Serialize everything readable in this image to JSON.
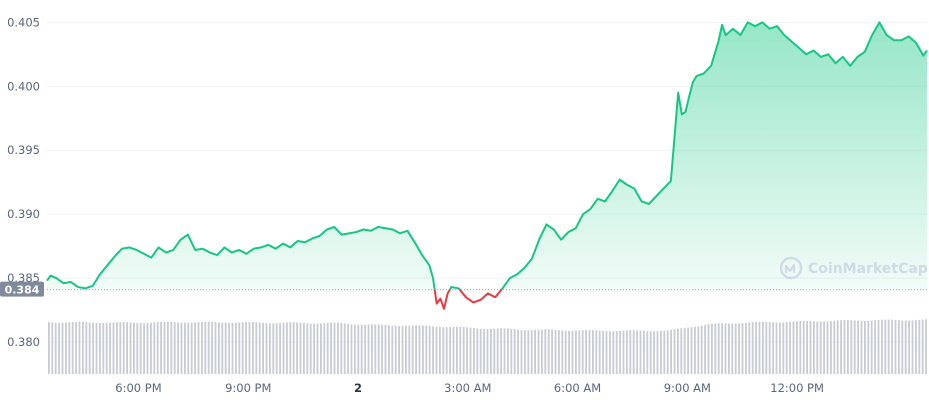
{
  "chart_data": {
    "type": "line",
    "y_ticks": [
      0.38,
      0.385,
      0.39,
      0.395,
      0.4,
      0.405
    ],
    "y_tick_labels": [
      "0.380",
      "0.385",
      "0.390",
      "0.395",
      "0.400",
      "0.405"
    ],
    "ylim": [
      0.3775,
      0.4062
    ],
    "x_tick_labels": [
      "6:00 PM",
      "9:00 PM",
      "2",
      "3:00 AM",
      "6:00 AM",
      "9:00 AM",
      "12:00 PM"
    ],
    "x_tick_hours": [
      18,
      21,
      24,
      27,
      30,
      33,
      36
    ],
    "x_range_hours": [
      15.5,
      39.55
    ],
    "baseline_value": 0.3841,
    "baseline_label": "0.384",
    "watermark": "CoinMarketCap",
    "colors": {
      "up": "#16c784",
      "down": "#ea3943",
      "fill_top": "#16c784",
      "volume": "#c7cbd4",
      "baseline_box": "#808a9d"
    },
    "series": [
      {
        "hours": [
          15.5,
          15.6,
          15.75,
          15.95,
          16.15,
          16.35,
          16.55,
          16.75,
          16.95,
          17.15,
          17.35,
          17.55,
          17.75,
          17.95,
          18.15,
          18.35,
          18.55,
          18.75,
          18.95,
          19.15,
          19.35,
          19.55,
          19.75,
          19.95,
          20.15,
          20.35,
          20.55,
          20.75,
          20.95,
          21.15,
          21.35,
          21.55,
          21.75,
          21.95,
          22.15,
          22.35,
          22.55,
          22.75,
          22.95,
          23.15,
          23.35,
          23.55,
          23.75,
          23.95,
          24.15,
          24.35,
          24.55,
          24.75,
          24.95,
          25.15,
          25.35,
          25.55,
          25.75,
          25.95,
          26.05,
          26.15,
          26.25,
          26.35,
          26.45,
          26.55,
          26.75,
          26.95,
          27.15,
          27.35,
          27.55,
          27.75,
          27.95,
          28.15,
          28.35,
          28.55,
          28.75,
          28.95,
          29.15,
          29.35,
          29.55,
          29.75,
          29.95,
          30.15,
          30.35,
          30.55,
          30.75,
          30.95,
          31.15,
          31.35,
          31.55,
          31.75,
          31.95,
          32.15,
          32.35,
          32.55,
          32.75,
          32.85,
          32.95,
          33.05,
          33.15,
          33.25,
          33.45,
          33.65,
          33.85,
          33.95,
          34.05,
          34.25,
          34.45,
          34.65,
          34.85,
          35.05,
          35.25,
          35.45,
          35.65,
          35.85,
          36.05,
          36.25,
          36.45,
          36.65,
          36.85,
          37.05,
          37.25,
          37.45,
          37.65,
          37.85,
          38.05,
          38.25,
          38.45,
          38.65,
          38.85,
          39.05,
          39.25,
          39.45,
          39.55
        ],
        "values": [
          0.3848,
          0.3852,
          0.385,
          0.3846,
          0.3847,
          0.3843,
          0.3842,
          0.3844,
          0.3853,
          0.386,
          0.3867,
          0.3873,
          0.3874,
          0.3872,
          0.3869,
          0.3866,
          0.3874,
          0.387,
          0.3872,
          0.388,
          0.3884,
          0.3872,
          0.3873,
          0.387,
          0.3868,
          0.3874,
          0.387,
          0.3872,
          0.3869,
          0.3873,
          0.3874,
          0.3876,
          0.3873,
          0.3877,
          0.3874,
          0.3879,
          0.3878,
          0.3881,
          0.3883,
          0.3888,
          0.389,
          0.3884,
          0.3885,
          0.3886,
          0.3888,
          0.3887,
          0.389,
          0.3889,
          0.3888,
          0.3885,
          0.3887,
          0.3878,
          0.3868,
          0.386,
          0.385,
          0.383,
          0.3834,
          0.3826,
          0.3838,
          0.3843,
          0.3842,
          0.3835,
          0.3831,
          0.3833,
          0.3838,
          0.3835,
          0.3842,
          0.385,
          0.3853,
          0.3858,
          0.3865,
          0.388,
          0.3892,
          0.3888,
          0.388,
          0.3886,
          0.3889,
          0.39,
          0.3904,
          0.3912,
          0.391,
          0.3918,
          0.3927,
          0.3923,
          0.392,
          0.391,
          0.3908,
          0.3914,
          0.392,
          0.3926,
          0.3995,
          0.3978,
          0.398,
          0.3992,
          0.4003,
          0.4008,
          0.401,
          0.4016,
          0.4035,
          0.4048,
          0.404,
          0.4045,
          0.404,
          0.405,
          0.4047,
          0.405,
          0.4045,
          0.4047,
          0.404,
          0.4035,
          0.403,
          0.4025,
          0.4028,
          0.4023,
          0.4025,
          0.4018,
          0.4023,
          0.4016,
          0.4023,
          0.4027,
          0.404,
          0.405,
          0.404,
          0.4036,
          0.4036,
          0.4039,
          0.4034,
          0.4024,
          0.4028
        ]
      }
    ],
    "volume": {
      "hours": [
        15.5,
        17.5,
        19.5,
        21.5,
        23.5,
        24.5,
        26.0,
        27.0,
        28.5,
        30.5,
        32.5,
        33.0,
        33.5,
        34.5,
        36.0,
        37.5,
        39.55
      ],
      "relative_heights": [
        0.91,
        0.9,
        0.91,
        0.9,
        0.89,
        0.86,
        0.84,
        0.81,
        0.78,
        0.76,
        0.76,
        0.82,
        0.87,
        0.9,
        0.92,
        0.94,
        0.95
      ]
    }
  }
}
